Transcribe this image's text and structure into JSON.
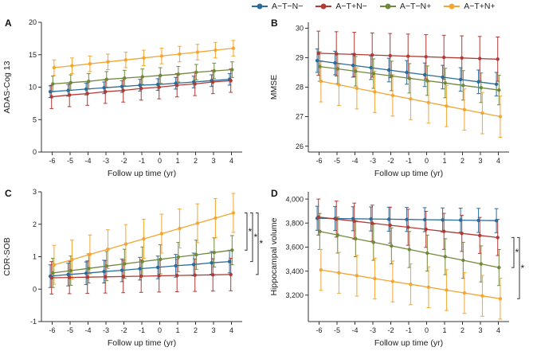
{
  "figure": {
    "background": "#ffffff"
  },
  "legend": {
    "items": [
      {
        "label": "A−T−N−",
        "color": "#2a6d9c"
      },
      {
        "label": "A−T+N−",
        "color": "#b13a35"
      },
      {
        "label": "A−T−N+",
        "color": "#71883c"
      },
      {
        "label": "A−T+N+",
        "color": "#f4a532"
      }
    ]
  },
  "chart_data": [
    {
      "letter": "A",
      "type": "line",
      "xlabel": "Follow up time (yr)",
      "ylabel": "ADAS-Cog 13",
      "x": [
        -6,
        -5,
        -4,
        -3,
        -2,
        -1,
        0,
        1,
        2,
        3,
        4
      ],
      "xtick_labels": [
        "-6",
        "-5",
        "-4",
        "-3",
        "-2",
        "-1",
        "0",
        "1",
        "2",
        "3",
        "4"
      ],
      "xlim": [
        -6.6,
        4.6
      ],
      "ylim": [
        0,
        20
      ],
      "yticks": [
        0,
        5,
        10,
        15,
        20
      ],
      "ytick_labels": [
        "0",
        "5",
        "10",
        "15",
        "20"
      ],
      "grid": false,
      "series": [
        {
          "name": "A−T−N−",
          "color": "#2a6d9c",
          "err": 0.9,
          "values": [
            9.3,
            9.5,
            9.7,
            9.9,
            10.1,
            10.3,
            10.4,
            10.6,
            10.8,
            11.0,
            11.2
          ]
        },
        {
          "name": "A−T+N−",
          "color": "#b13a35",
          "err": 1.8,
          "values": [
            8.5,
            8.8,
            9.0,
            9.3,
            9.5,
            9.8,
            10.0,
            10.3,
            10.5,
            10.8,
            11.0
          ]
        },
        {
          "name": "A−T−N+",
          "color": "#71883c",
          "err": 1.2,
          "values": [
            10.5,
            10.7,
            10.9,
            11.2,
            11.4,
            11.6,
            11.8,
            12.0,
            12.3,
            12.5,
            12.7
          ]
        },
        {
          "name": "A−T+N+",
          "color": "#f4a532",
          "err": 1.2,
          "values": [
            13.0,
            13.3,
            13.6,
            13.9,
            14.2,
            14.5,
            14.8,
            15.1,
            15.4,
            15.7,
            16.0
          ]
        }
      ],
      "brackets": []
    },
    {
      "letter": "B",
      "type": "line",
      "xlabel": "Follow up time (yr)",
      "ylabel": "MMSE",
      "x": [
        -6,
        -5,
        -4,
        -3,
        -2,
        -1,
        0,
        1,
        2,
        3,
        4
      ],
      "xtick_labels": [
        "-6",
        "-5",
        "-4",
        "-3",
        "-2",
        "-1",
        "0",
        "1",
        "2",
        "3",
        "4"
      ],
      "xlim": [
        -6.6,
        4.6
      ],
      "ylim": [
        25.8,
        30.2
      ],
      "yticks": [
        26,
        27,
        28,
        29,
        30
      ],
      "ytick_labels": [
        "26",
        "27",
        "28",
        "29",
        "30"
      ],
      "grid": false,
      "series": [
        {
          "name": "A−T−N−",
          "color": "#2a6d9c",
          "err": 0.4,
          "values": [
            28.9,
            28.82,
            28.74,
            28.66,
            28.58,
            28.5,
            28.42,
            28.34,
            28.26,
            28.18,
            28.1
          ]
        },
        {
          "name": "A−T+N−",
          "color": "#b13a35",
          "err": 0.75,
          "values": [
            29.15,
            29.13,
            29.11,
            29.09,
            29.07,
            29.05,
            29.03,
            29.01,
            28.99,
            28.97,
            28.95
          ]
        },
        {
          "name": "A−T−N+",
          "color": "#71883c",
          "err": 0.5,
          "values": [
            28.7,
            28.62,
            28.54,
            28.46,
            28.38,
            28.3,
            28.22,
            28.14,
            28.06,
            27.98,
            27.9
          ]
        },
        {
          "name": "A−T+N+",
          "color": "#f4a532",
          "err": 0.7,
          "values": [
            28.2,
            28.08,
            27.96,
            27.84,
            27.72,
            27.6,
            27.48,
            27.36,
            27.24,
            27.12,
            27.0
          ]
        }
      ],
      "brackets": []
    },
    {
      "letter": "C",
      "type": "line",
      "xlabel": "Follow up time (yr)",
      "ylabel": "CDR-SOB",
      "x": [
        -6,
        -5,
        -4,
        -3,
        -2,
        -1,
        0,
        1,
        2,
        3,
        4
      ],
      "xtick_labels": [
        "-6",
        "-5",
        "-4",
        "-3",
        "-2",
        "-1",
        "0",
        "1",
        "2",
        "3",
        "4"
      ],
      "xlim": [
        -6.6,
        4.6
      ],
      "ylim": [
        -1,
        3
      ],
      "yticks": [
        -1,
        0,
        1,
        2,
        3
      ],
      "ytick_labels": [
        "-1",
        "0",
        "1",
        "2",
        "3"
      ],
      "grid": false,
      "series": [
        {
          "name": "A−T−N−",
          "color": "#2a6d9c",
          "err": 0.35,
          "values": [
            0.4,
            0.45,
            0.49,
            0.54,
            0.58,
            0.63,
            0.67,
            0.72,
            0.76,
            0.81,
            0.85
          ]
        },
        {
          "name": "A−T+N−",
          "color": "#b13a35",
          "err": 0.5,
          "values": [
            0.35,
            0.36,
            0.37,
            0.38,
            0.39,
            0.4,
            0.41,
            0.42,
            0.43,
            0.44,
            0.45
          ]
        },
        {
          "name": "A−T−N+",
          "color": "#71883c",
          "err": 0.45,
          "values": [
            0.5,
            0.57,
            0.64,
            0.71,
            0.78,
            0.85,
            0.92,
            0.99,
            1.06,
            1.13,
            1.2
          ]
        },
        {
          "name": "A−T+N+",
          "color": "#f4a532",
          "err": 0.6,
          "values": [
            0.75,
            0.91,
            1.07,
            1.23,
            1.39,
            1.55,
            1.71,
            1.87,
            2.03,
            2.19,
            2.35
          ]
        }
      ],
      "brackets": [
        {
          "y1": 2.35,
          "y2": 1.2,
          "label": "*"
        },
        {
          "y1": 2.35,
          "y2": 0.85,
          "label": "*"
        },
        {
          "y1": 2.35,
          "y2": 0.45,
          "label": "*"
        }
      ]
    },
    {
      "letter": "D",
      "type": "line",
      "xlabel": "Follow up time (yr)",
      "ylabel": "Hippocampal volume",
      "x": [
        -6,
        -5,
        -4,
        -3,
        -2,
        -1,
        0,
        1,
        2,
        3,
        4
      ],
      "xtick_labels": [
        "-6",
        "-5",
        "-4",
        "-3",
        "-2",
        "-1",
        "0",
        "1",
        "2",
        "3",
        "4"
      ],
      "xlim": [
        -6.6,
        4.6
      ],
      "ylim": [
        2980,
        4060
      ],
      "yticks": [
        3200,
        3400,
        3600,
        3800,
        4000
      ],
      "ytick_labels": [
        "3,200",
        "3,400",
        "3,600",
        "3,800",
        "4,000"
      ],
      "grid": false,
      "series": [
        {
          "name": "A−T−N−",
          "color": "#2a6d9c",
          "err": 100,
          "values": [
            3840,
            3838,
            3836,
            3834,
            3832,
            3830,
            3828,
            3826,
            3824,
            3822,
            3820
          ]
        },
        {
          "name": "A−T+N−",
          "color": "#b13a35",
          "err": 150,
          "values": [
            3850,
            3833,
            3816,
            3799,
            3782,
            3765,
            3748,
            3731,
            3714,
            3697,
            3680
          ]
        },
        {
          "name": "A−T−N+",
          "color": "#71883c",
          "err": 150,
          "values": [
            3730,
            3700,
            3670,
            3640,
            3610,
            3580,
            3550,
            3520,
            3490,
            3460,
            3430
          ]
        },
        {
          "name": "A−T+N+",
          "color": "#f4a532",
          "err": 170,
          "values": [
            3410,
            3386,
            3362,
            3338,
            3314,
            3290,
            3266,
            3242,
            3218,
            3194,
            3170
          ]
        }
      ],
      "brackets": [
        {
          "y1": 3680,
          "y2": 3430,
          "label": "*"
        },
        {
          "y1": 3680,
          "y2": 3170,
          "label": "*"
        }
      ]
    }
  ]
}
